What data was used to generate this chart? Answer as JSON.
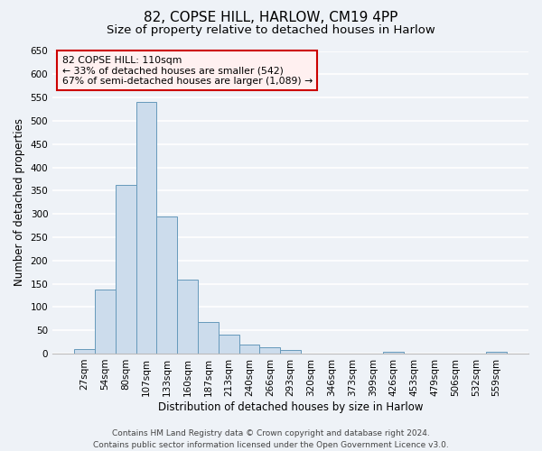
{
  "title": "82, COPSE HILL, HARLOW, CM19 4PP",
  "subtitle": "Size of property relative to detached houses in Harlow",
  "xlabel": "Distribution of detached houses by size in Harlow",
  "ylabel": "Number of detached properties",
  "bin_labels": [
    "27sqm",
    "54sqm",
    "80sqm",
    "107sqm",
    "133sqm",
    "160sqm",
    "187sqm",
    "213sqm",
    "240sqm",
    "266sqm",
    "293sqm",
    "320sqm",
    "346sqm",
    "373sqm",
    "399sqm",
    "426sqm",
    "453sqm",
    "479sqm",
    "506sqm",
    "532sqm",
    "559sqm"
  ],
  "bar_heights": [
    10,
    137,
    363,
    540,
    295,
    158,
    67,
    40,
    20,
    14,
    8,
    0,
    0,
    0,
    0,
    4,
    0,
    0,
    0,
    0,
    4
  ],
  "bar_color": "#ccdcec",
  "bar_edge_color": "#6699bb",
  "ylim": [
    0,
    650
  ],
  "yticks": [
    0,
    50,
    100,
    150,
    200,
    250,
    300,
    350,
    400,
    450,
    500,
    550,
    600,
    650
  ],
  "annotation_line1": "82 COPSE HILL: 110sqm",
  "annotation_line2": "← 33% of detached houses are smaller (542)",
  "annotation_line3": "67% of semi-detached houses are larger (1,089) →",
  "annotation_box_facecolor": "#fff0f0",
  "annotation_border_color": "#cc0000",
  "footer_line1": "Contains HM Land Registry data © Crown copyright and database right 2024.",
  "footer_line2": "Contains public sector information licensed under the Open Government Licence v3.0.",
  "background_color": "#eef2f7",
  "grid_color": "#ffffff",
  "title_fontsize": 11,
  "subtitle_fontsize": 9.5,
  "axis_label_fontsize": 8.5,
  "tick_fontsize": 7.5,
  "footer_fontsize": 6.5
}
